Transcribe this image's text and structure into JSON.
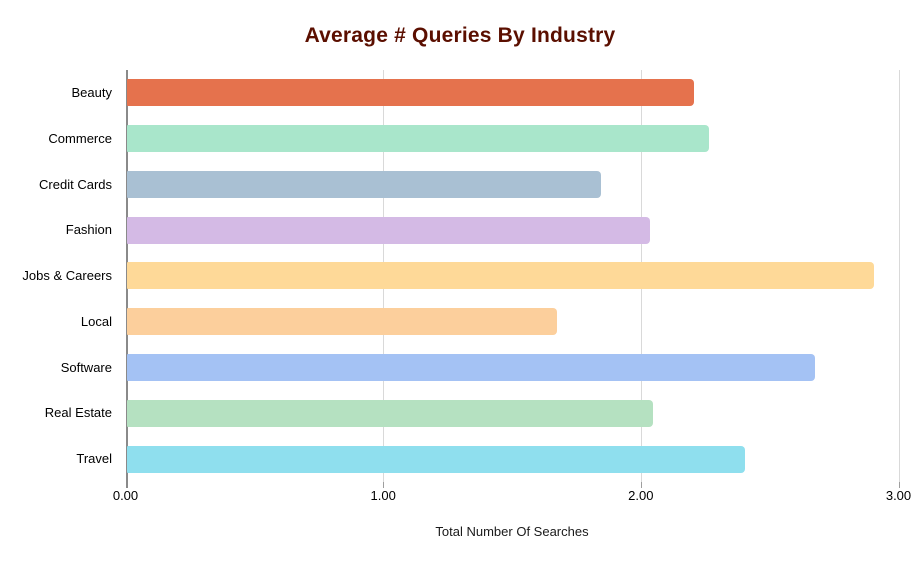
{
  "title": "Average # Queries By Industry",
  "title_color": "#5b0f00",
  "chart_data": {
    "type": "bar",
    "orientation": "horizontal",
    "title": "Average # Queries By Industry",
    "xlabel": "Total Number Of Searches",
    "ylabel": "",
    "categories": [
      "Beauty",
      "Commerce",
      "Credit Cards",
      "Fashion",
      "Jobs & Careers",
      "Local",
      "Software",
      "Real Estate",
      "Travel"
    ],
    "values": [
      2.2,
      2.26,
      1.84,
      2.03,
      2.9,
      1.67,
      2.67,
      2.04,
      2.4
    ],
    "bar_colors": [
      "#e5724d",
      "#a9e6cb",
      "#a9c0d3",
      "#d4bae5",
      "#fed998",
      "#fccf9c",
      "#a4c2f4",
      "#b5e1c1",
      "#8fdfee"
    ],
    "x_ticks": [
      "0.00",
      "1.00",
      "2.00",
      "3.00"
    ],
    "xlim": [
      0,
      3
    ],
    "grid": "vertical-only",
    "gridline_color": "#d9d9d9",
    "axis_line_color": "#8a8a8a",
    "tick_color": "#9e9e9e",
    "legend": "none"
  }
}
